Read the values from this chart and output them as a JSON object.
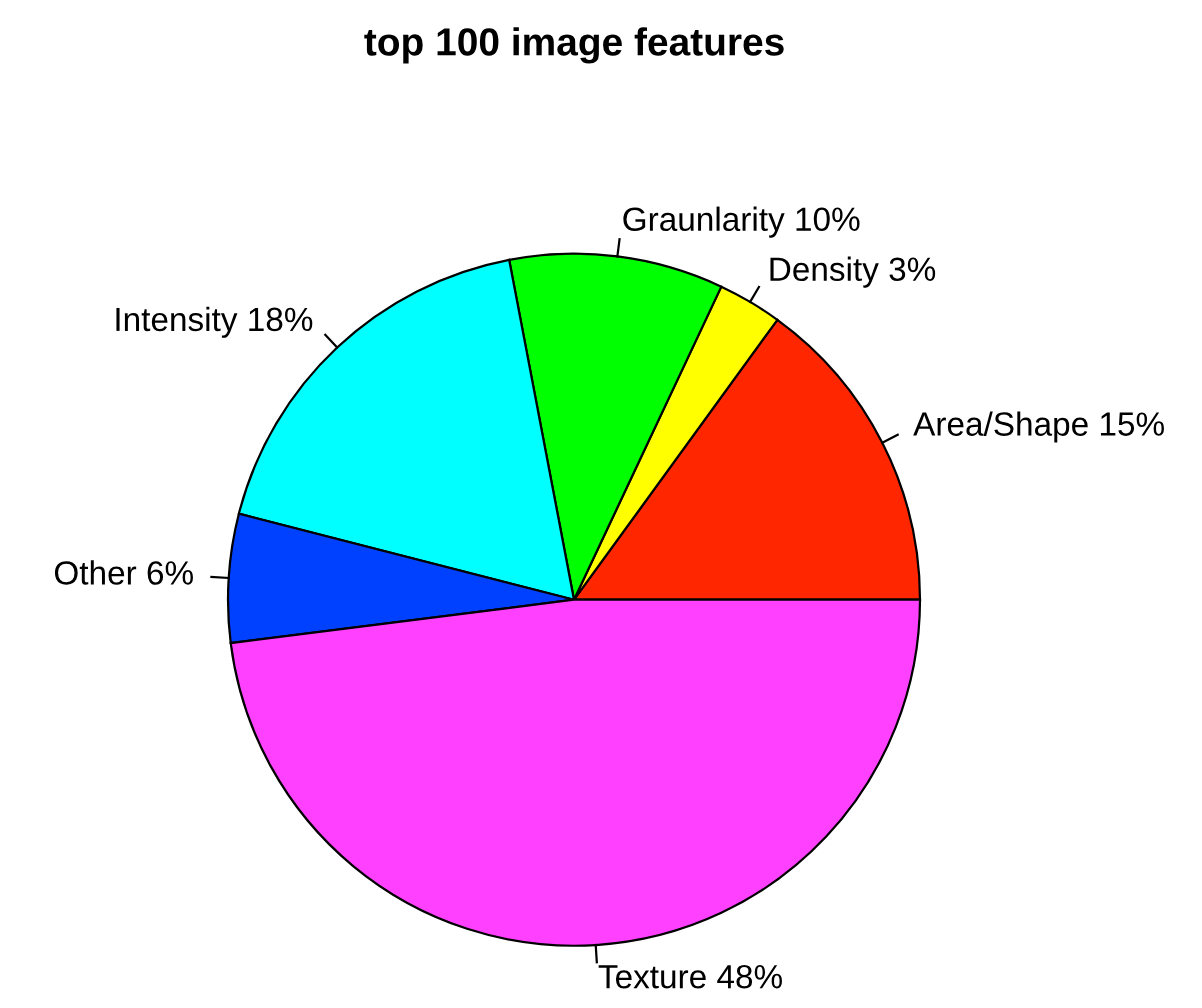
{
  "chart_data": {
    "type": "pie",
    "title": "top 100 image features",
    "categories": [
      "Area/Shape",
      "Density",
      "Graunlarity",
      "Intensity",
      "Other",
      "Texture"
    ],
    "values": [
      15,
      3,
      10,
      18,
      6,
      48
    ],
    "value_labels": [
      "15%",
      "3%",
      "10%",
      "18%",
      "6%",
      "48%"
    ],
    "colors": [
      "#ff2600",
      "#ffff00",
      "#00ff00",
      "#00ffff",
      "#0040ff",
      "#ff40ff"
    ],
    "legend": false
  }
}
